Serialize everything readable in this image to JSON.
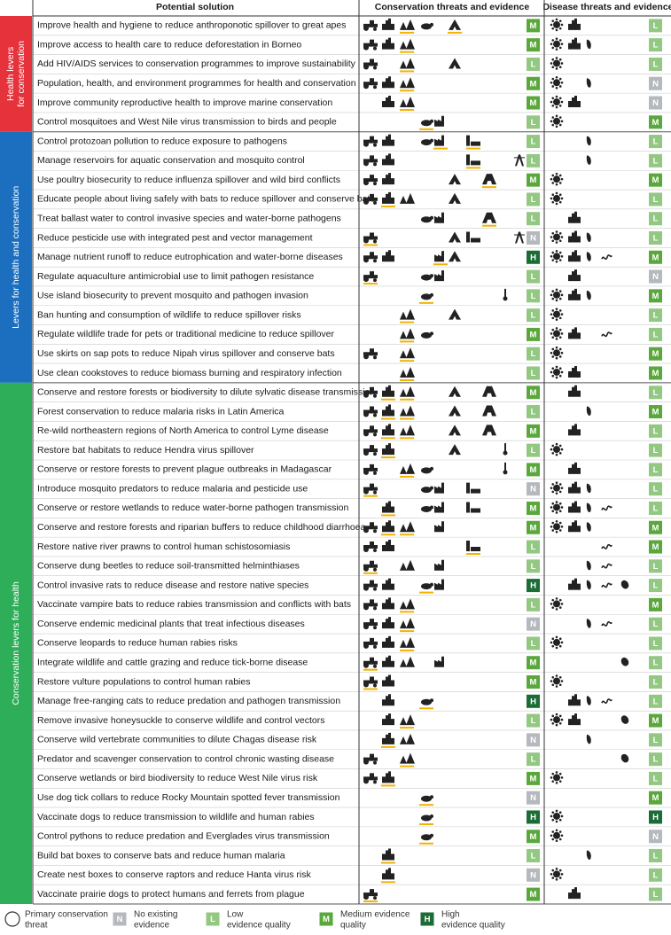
{
  "headers": {
    "solution": "Potential solution",
    "conservation": "Conservation threats and evidence",
    "disease": "Disease threats and evidence"
  },
  "sections": [
    {
      "label": [
        "Health levers",
        "for conservation"
      ],
      "rows": [
        [
          "Improve health and hygiene to reduce anthroponotic spillover to great apes",
          "M",
          "L"
        ],
        [
          "Improve access to health care to reduce deforestation in Borneo",
          "M",
          "L"
        ],
        [
          "Add HIV/AIDS services to conservation programmes to improve sustainability",
          "L",
          "L"
        ],
        [
          "Population, health, and environment programmes for health and conservation",
          "M",
          "N"
        ],
        [
          "Improve community reproductive health to improve marine conservation",
          "M",
          "N"
        ],
        [
          "Control mosquitoes and West Nile virus transmission to birds and people",
          "L",
          "M"
        ]
      ]
    },
    {
      "label": [
        "Levers for health and conservation"
      ],
      "rows": [
        [
          "Control protozoan pollution to reduce exposure to pathogens",
          "L",
          "L"
        ],
        [
          "Manage reservoirs for aquatic conservation and mosquito control",
          "L",
          "L"
        ],
        [
          "Use poultry biosecurity to reduce influenza spillover and wild bird conflicts",
          "M",
          "M"
        ],
        [
          "Educate people about living safely with bats to reduce spillover and conserve bats",
          "L",
          "L"
        ],
        [
          "Treat ballast water to control invasive species and water-borne pathogens",
          "L",
          "L"
        ],
        [
          "Reduce pesticide use with integrated pest and vector management",
          "N",
          "L"
        ],
        [
          "Manage nutrient runoff to reduce eutrophication and water-borne diseases",
          "H",
          "M"
        ],
        [
          "Regulate aquaculture antimicrobial use to limit pathogen resistance",
          "L",
          "N"
        ],
        [
          "Use island biosecurity to prevent mosquito and pathogen invasion",
          "L",
          "M"
        ],
        [
          "Ban hunting and consumption of wildlife to reduce spillover risks",
          "L",
          "L"
        ],
        [
          "Regulate wildlife trade for pets or traditional medicine to reduce spillover",
          "M",
          "L"
        ],
        [
          "Use skirts on sap pots to reduce Nipah virus spillover and conserve bats",
          "L",
          "M"
        ],
        [
          "Use clean cookstoves to reduce biomass burning and respiratory infection",
          "L",
          "M"
        ]
      ]
    },
    {
      "label": [
        "Conservation levers for health"
      ],
      "rows": [
        [
          "Conserve and restore forests or biodiversity to dilute sylvatic disease transmission",
          "M",
          "L"
        ],
        [
          "Forest conservation to reduce malaria risks in Latin America",
          "L",
          "M"
        ],
        [
          "Re-wild northeastern regions of North America to control Lyme disease",
          "M",
          "L"
        ],
        [
          "Restore bat habitats to reduce Hendra virus spillover",
          "L",
          "L"
        ],
        [
          "Conserve or restore forests to prevent plague outbreaks in Madagascar",
          "M",
          "L"
        ],
        [
          "Introduce mosquito predators to reduce malaria and pesticide use",
          "N",
          "L"
        ],
        [
          "Conserve or restore wetlands to reduce water-borne pathogen transmission",
          "M",
          "L"
        ],
        [
          "Conserve and restore forests and riparian buffers to reduce childhood diarrhoea",
          "M",
          "M"
        ],
        [
          "Restore native river prawns to control human schistosomiasis",
          "L",
          "M"
        ],
        [
          "Conserve dung beetles to reduce soil-transmitted helminthiases",
          "L",
          "L"
        ],
        [
          "Control invasive rats to reduce disease and restore native species",
          "H",
          "L"
        ],
        [
          "Vaccinate vampire bats to reduce rabies transmission and conflicts with bats",
          "L",
          "M"
        ],
        [
          "Conserve endemic medicinal plants that treat infectious diseases",
          "N",
          "L"
        ],
        [
          "Conserve leopards to reduce human rabies risks",
          "L",
          "L"
        ],
        [
          "Integrate wildlife and cattle grazing and reduce tick-borne disease",
          "M",
          "L"
        ],
        [
          "Restore vulture populations to control human rabies",
          "M",
          "L"
        ],
        [
          "Manage free-ranging cats to reduce predation and pathogen transmission",
          "H",
          "L"
        ],
        [
          "Remove invasive honeysuckle to conserve wildlife and control vectors",
          "L",
          "M"
        ],
        [
          "Conserve wild vertebrate communities to dilute Chagas disease risk",
          "N",
          "L"
        ],
        [
          "Predator and scavenger conservation to control chronic wasting disease",
          "L",
          "L"
        ],
        [
          "Conserve wetlands or bird biodiversity to reduce West Nile virus risk",
          "M",
          "L"
        ],
        [
          "Use dog tick collars to reduce Rocky Mountain spotted fever transmission",
          "N",
          "M"
        ],
        [
          "Vaccinate dogs to reduce transmission to wildlife and human rabies",
          "H",
          "H"
        ],
        [
          "Control pythons to reduce predation and Everglades virus transmission",
          "M",
          "N"
        ],
        [
          "Build bat boxes to conserve bats and reduce human malaria",
          "L",
          "L"
        ],
        [
          "Create nest boxes to conserve raptors and reduce Hanta virus risk",
          "N",
          "L"
        ],
        [
          "Vaccinate prairie dogs to protect humans and ferrets from plague",
          "M",
          "L"
        ]
      ]
    }
  ],
  "legend": [
    {
      "key": "",
      "lines": [
        "Primary conservation",
        "threat"
      ]
    },
    {
      "key": "N",
      "lines": [
        "No existing",
        "evidence"
      ]
    },
    {
      "key": "L",
      "lines": [
        "Low",
        "evidence quality"
      ]
    },
    {
      "key": "M",
      "lines": [
        "Medium evidence",
        "quality"
      ]
    },
    {
      "key": "H",
      "lines": [
        "High",
        "evidence quality"
      ]
    }
  ]
}
